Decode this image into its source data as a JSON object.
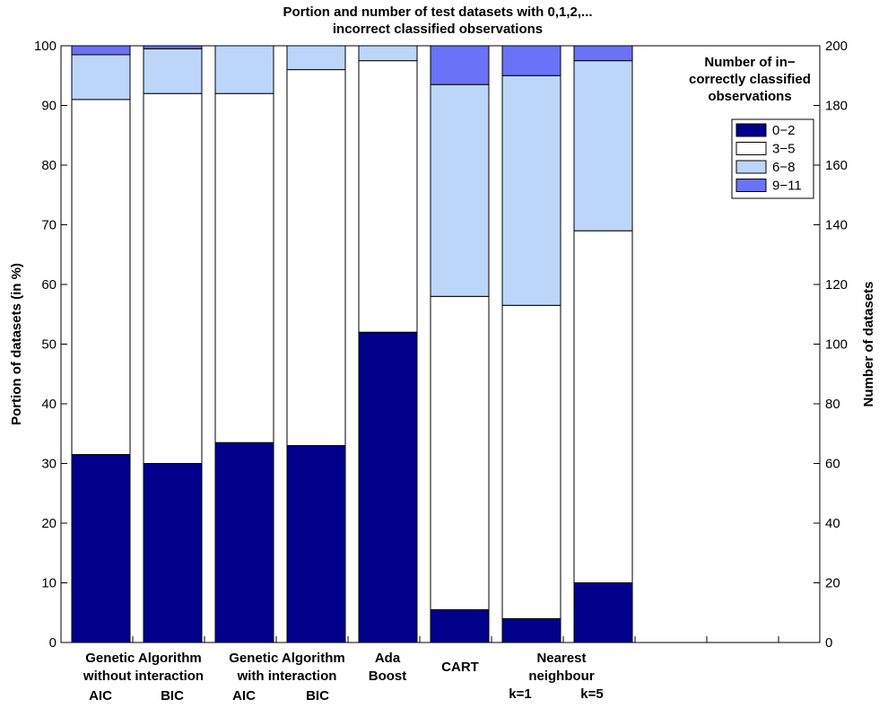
{
  "chart_data": {
    "type": "bar",
    "stacked": true,
    "title": "Portion and number of test datasets with 0,1,2,...",
    "subtitle": "incorrect classified observations",
    "ylabel": "Portion of datasets (in %)",
    "y2label": "Number of datasets",
    "ylim": [
      0,
      100
    ],
    "y2lim": [
      0,
      200
    ],
    "yticks": [
      "0",
      "10",
      "20",
      "30",
      "40",
      "50",
      "60",
      "70",
      "80",
      "90",
      "100"
    ],
    "y2ticks": [
      "0",
      "20",
      "40",
      "60",
      "80",
      "100",
      "120",
      "140",
      "160",
      "180",
      "200"
    ],
    "categories": [
      "AIC",
      "BIC",
      "AIC",
      "BIC",
      "Ada Boost",
      "CART",
      "k=1",
      "k=5"
    ],
    "group_labels": [
      {
        "lines": [
          "Genetic Algorithm",
          "without interaction"
        ]
      },
      {
        "lines": [
          "Genetic Algorithm",
          "with interaction"
        ]
      },
      {
        "lines": [
          "Ada",
          "Boost"
        ]
      },
      {
        "lines": [
          "CART"
        ]
      },
      {
        "lines": [
          "Nearest",
          "neighbour"
        ]
      }
    ],
    "sub_labels": [
      "AIC",
      "BIC",
      "AIC",
      "BIC",
      "k=1",
      "k=5"
    ],
    "series": [
      {
        "name": "0−2",
        "color": "#00008b",
        "values": [
          31.5,
          30,
          33.5,
          33,
          52,
          5.5,
          4,
          10
        ]
      },
      {
        "name": "3−5",
        "color": "#ffffff",
        "values": [
          59.5,
          62,
          58.5,
          63,
          45.5,
          52.5,
          52.5,
          59
        ]
      },
      {
        "name": "6−8",
        "color": "#bcd6fa",
        "values": [
          7.5,
          7.5,
          8,
          4,
          2.5,
          35.5,
          38.5,
          28.5
        ]
      },
      {
        "name": "9−11",
        "color": "#6a72f8",
        "values": [
          1.5,
          0.5,
          0,
          0,
          0,
          6.5,
          5,
          2.5
        ]
      }
    ],
    "legend": {
      "title": [
        "Number of in−",
        "correctly classified",
        "observations"
      ],
      "position": "top-right"
    },
    "grid": false
  }
}
